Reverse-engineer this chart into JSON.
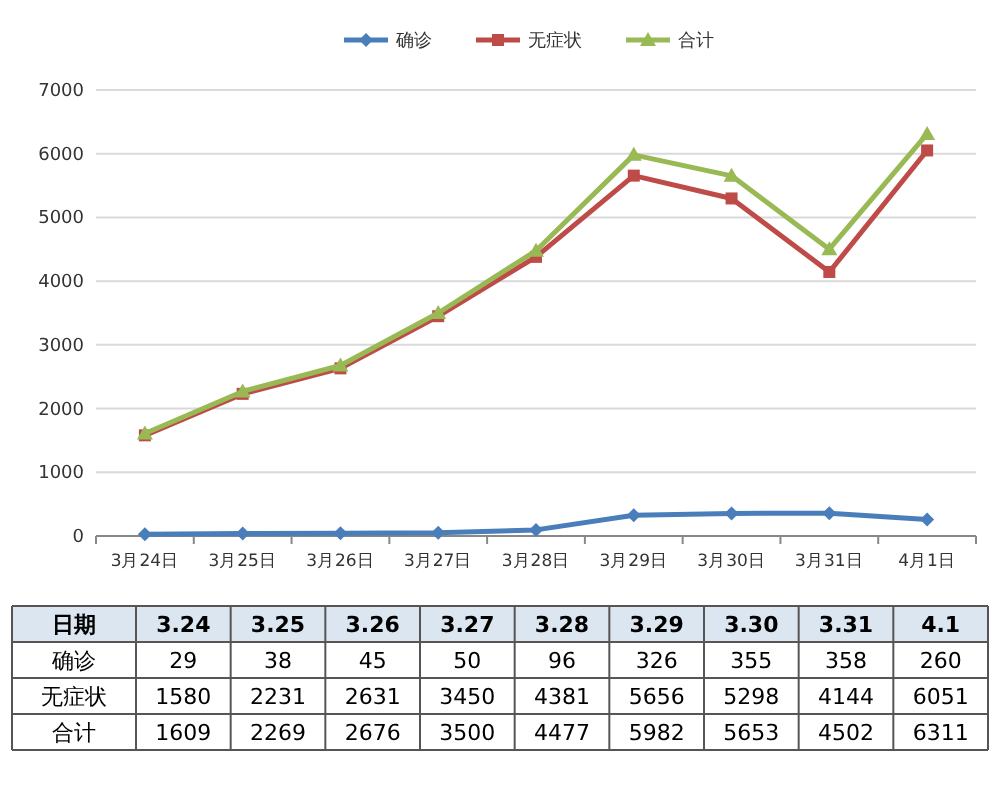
{
  "chart_data": {
    "type": "line",
    "categories": [
      "3月24日",
      "3月25日",
      "3月26日",
      "3月27日",
      "3月28日",
      "3月29日",
      "3月30日",
      "3月31日",
      "4月1日"
    ],
    "series": [
      {
        "name": "确诊",
        "color": "#4a7ebb",
        "marker": "diamond",
        "values": [
          29,
          38,
          45,
          50,
          96,
          326,
          355,
          358,
          260
        ]
      },
      {
        "name": "无症状",
        "color": "#be4b48",
        "marker": "square",
        "values": [
          1580,
          2231,
          2631,
          3450,
          4381,
          5656,
          5298,
          4144,
          6051
        ]
      },
      {
        "name": "合计",
        "color": "#98b954",
        "marker": "triangle",
        "values": [
          1609,
          2269,
          2676,
          3500,
          4477,
          5982,
          5653,
          4502,
          6311
        ]
      }
    ],
    "ylim": [
      0,
      7000
    ],
    "yticks": [
      0,
      1000,
      2000,
      3000,
      4000,
      5000,
      6000,
      7000
    ],
    "grid": "y",
    "legend": "top",
    "data_labels": true,
    "annotations": [
      "日期",
      "3.24",
      "3.25",
      "3.26",
      "3.27",
      "3.28",
      "3.29",
      "3.30",
      "3.31",
      "4.1"
    ]
  }
}
